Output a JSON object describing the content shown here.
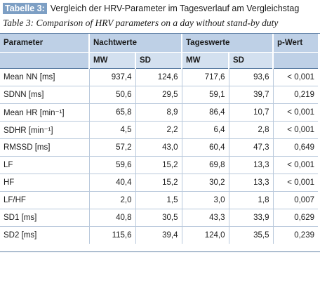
{
  "caption": {
    "badge": "Tabelle 3:",
    "de": "Vergleich der HRV-Parameter im Tagesverlauf am Vergleichstag",
    "en": "Table 3: Comparison of HRV parameters on a day without stand-by duty"
  },
  "table": {
    "headers": {
      "parameter": "Parameter",
      "night": "Nachtwerte",
      "day": "Tageswerte",
      "p": "p-Wert"
    },
    "subheaders": {
      "night_mw": "MW",
      "night_sd": "SD",
      "day_mw": "MW",
      "day_sd": "SD"
    },
    "rows": [
      {
        "param": "Mean NN [ms]",
        "night_mw": "937,4",
        "night_sd": "124,6",
        "day_mw": "717,6",
        "day_sd": "93,6",
        "p": "< 0,001"
      },
      {
        "param": "SDNN [ms]",
        "night_mw": "50,6",
        "night_sd": "29,5",
        "day_mw": "59,1",
        "day_sd": "39,7",
        "p": "0,219"
      },
      {
        "param": "Mean HR [min⁻¹]",
        "night_mw": "65,8",
        "night_sd": "8,9",
        "day_mw": "86,4",
        "day_sd": "10,7",
        "p": "< 0,001"
      },
      {
        "param": "SDHR [min⁻¹]",
        "night_mw": "4,5",
        "night_sd": "2,2",
        "day_mw": "6,4",
        "day_sd": "2,8",
        "p": "< 0,001"
      },
      {
        "param": "RMSSD [ms]",
        "night_mw": "57,2",
        "night_sd": "43,0",
        "day_mw": "60,4",
        "day_sd": "47,3",
        "p": "0,649"
      },
      {
        "param": "LF",
        "night_mw": "59,6",
        "night_sd": "15,2",
        "day_mw": "69,8",
        "day_sd": "13,3",
        "p": "< 0,001"
      },
      {
        "param": "HF",
        "night_mw": "40,4",
        "night_sd": "15,2",
        "day_mw": "30,2",
        "day_sd": "13,3",
        "p": "< 0,001"
      },
      {
        "param": "LF/HF",
        "night_mw": "2,0",
        "night_sd": "1,5",
        "day_mw": "3,0",
        "day_sd": "1,8",
        "p": "0,007"
      },
      {
        "param": "SD1 [ms]",
        "night_mw": "40,8",
        "night_sd": "30,5",
        "day_mw": "43,3",
        "day_sd": "33,9",
        "p": "0,629"
      },
      {
        "param": "SD2 [ms]",
        "night_mw": "115,6",
        "night_sd": "39,4",
        "day_mw": "124,0",
        "day_sd": "35,5",
        "p": "0,239"
      }
    ]
  }
}
